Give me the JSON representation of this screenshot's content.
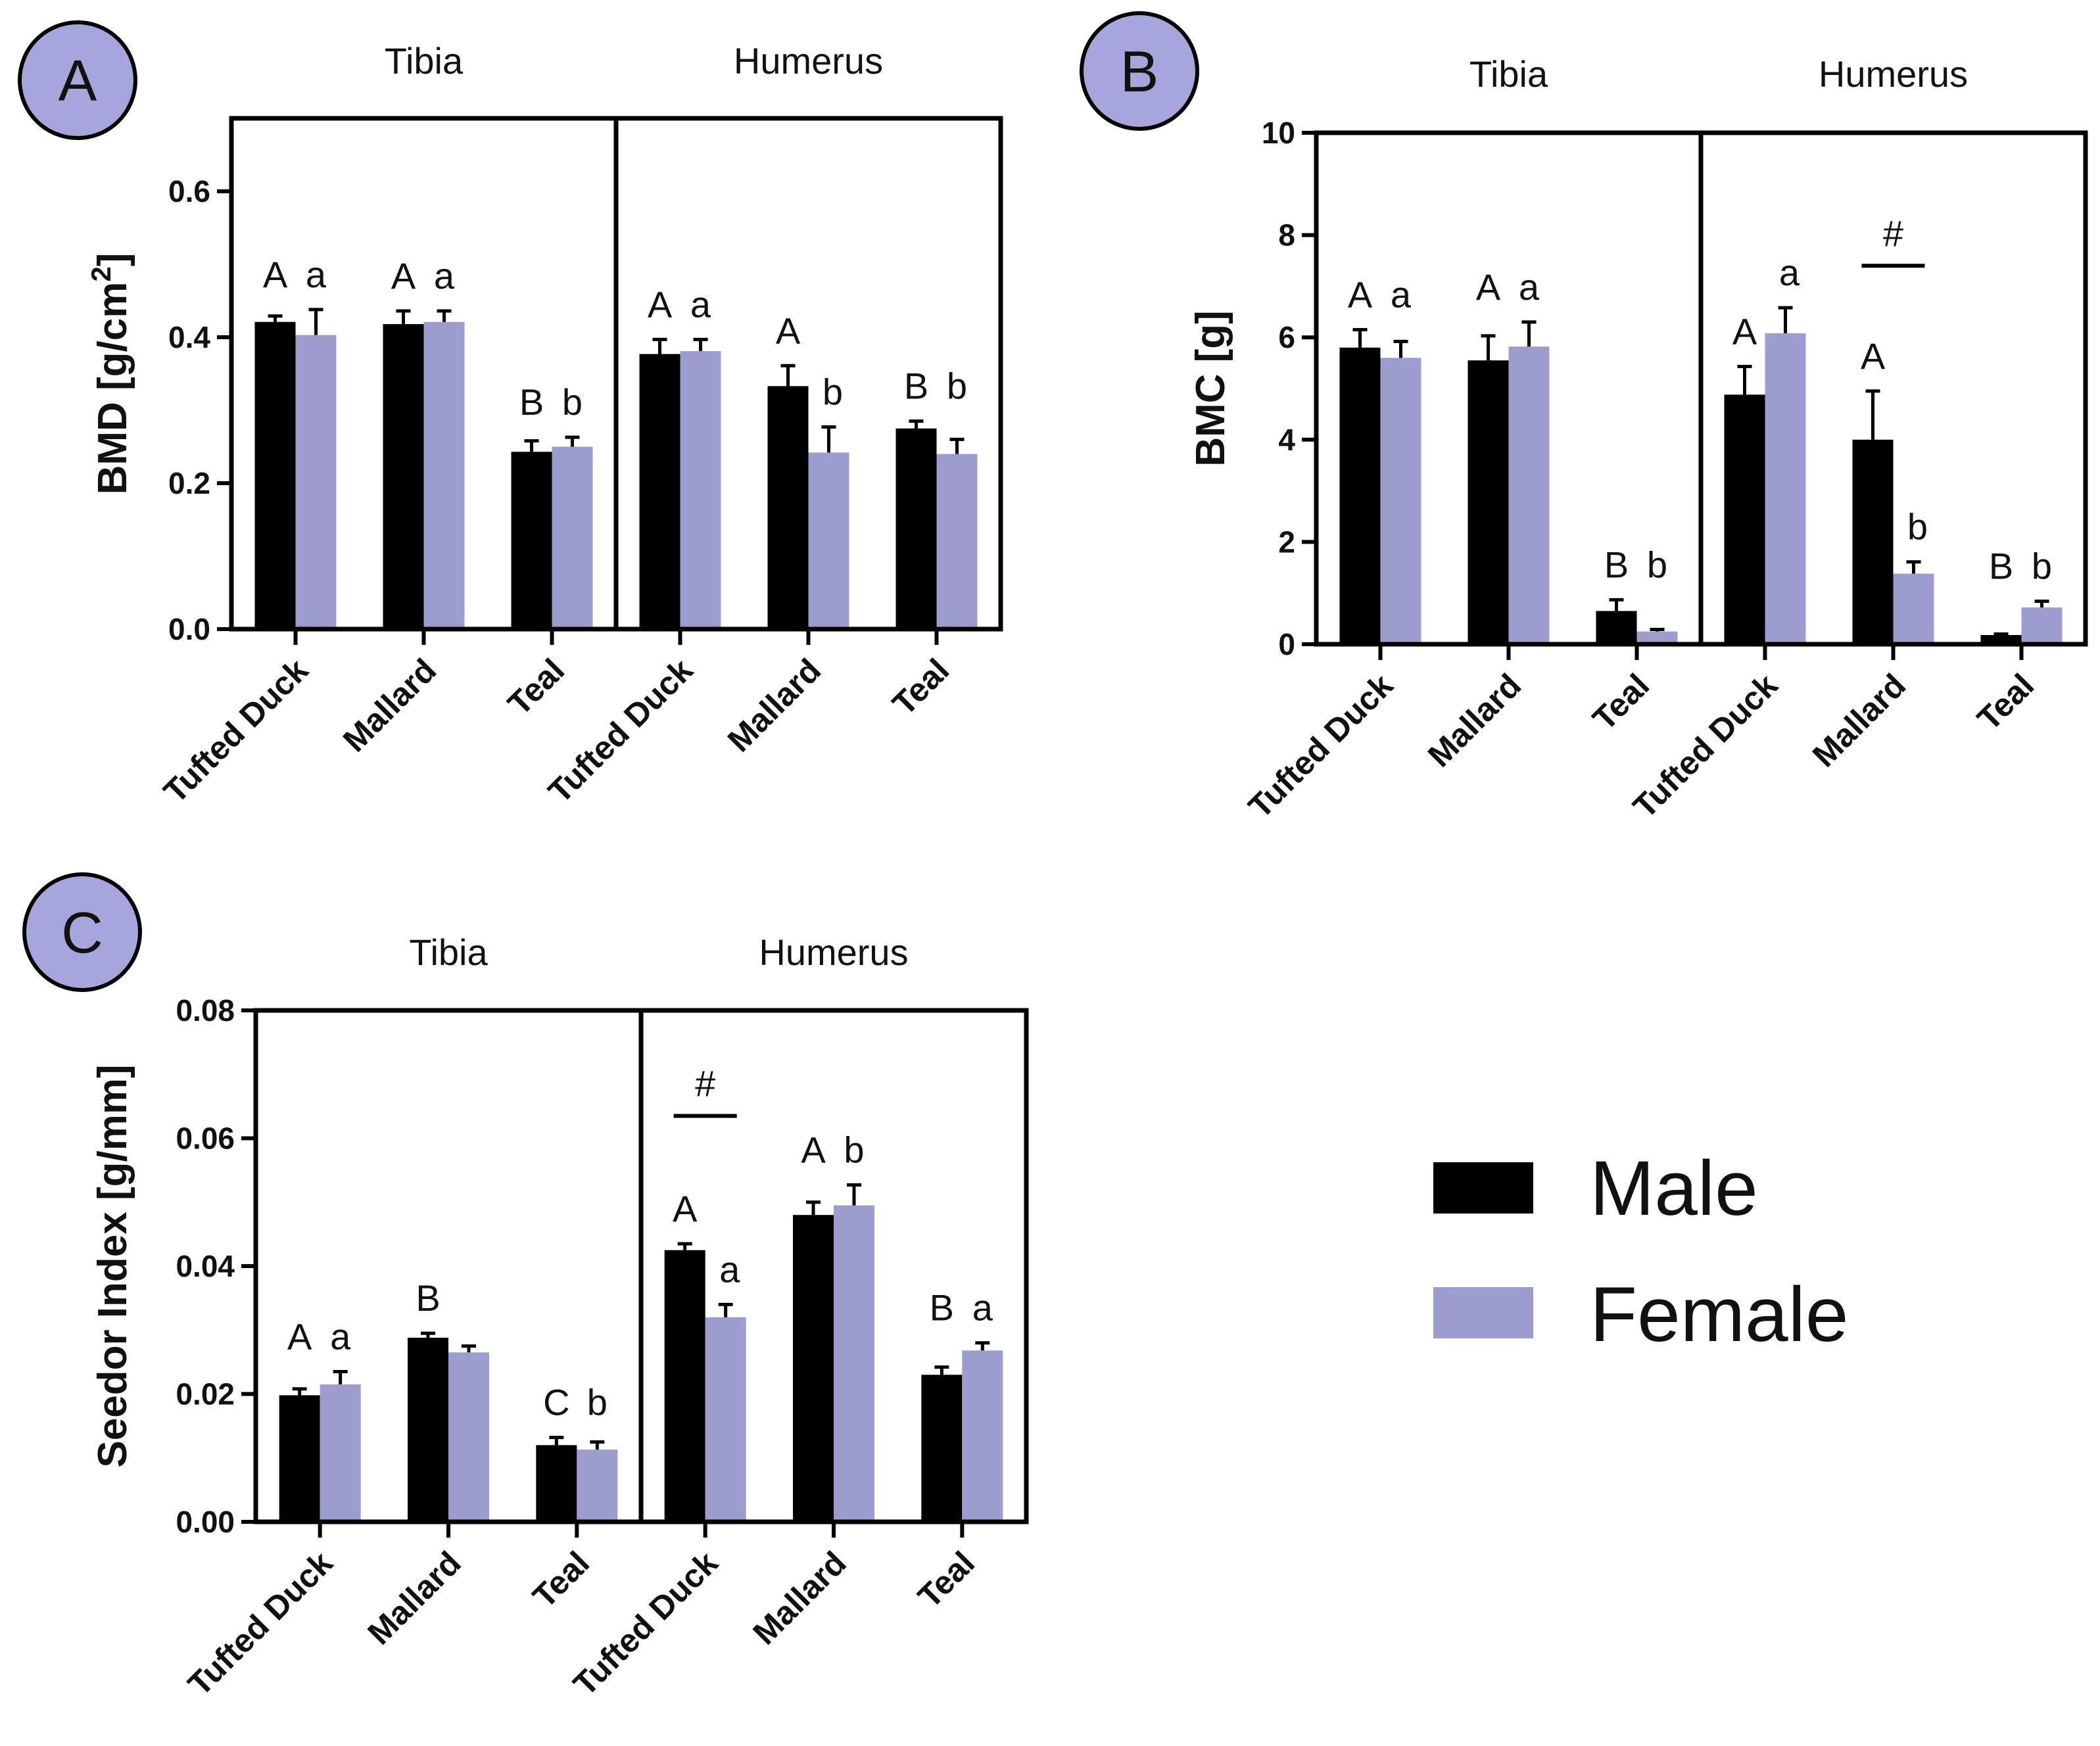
{
  "legend": {
    "items": [
      {
        "label": "Male",
        "color": "#000000"
      },
      {
        "label": "Female",
        "color": "#9c9ccf"
      }
    ]
  },
  "colors": {
    "male": "#000000",
    "female": "#9c9ccf",
    "badge": "#a6a6dc",
    "axis": "#000000"
  },
  "chart_data": [
    {
      "id": "A",
      "type": "bar",
      "panel_label": "A",
      "ylabel": "BMD [g/cm",
      "ylabel_sup": "2",
      "ylabel_end": "]",
      "ylim": [
        0,
        0.7
      ],
      "yticks": [
        0.0,
        0.2,
        0.4,
        0.6
      ],
      "ytick_labels": [
        "0.0",
        "0.2",
        "0.4",
        "0.6"
      ],
      "groups": [
        {
          "name": "Tibia",
          "categories": [
            {
              "name": "Tufted Duck",
              "male": 0.421,
              "male_err": 0.008,
              "female": 0.403,
              "female_err": 0.035,
              "sig_male": "A",
              "sig_female": "a"
            },
            {
              "name": "Mallard",
              "male": 0.418,
              "male_err": 0.018,
              "female": 0.421,
              "female_err": 0.015,
              "sig_male": "A",
              "sig_female": "a"
            },
            {
              "name": "Teal",
              "male": 0.243,
              "male_err": 0.015,
              "female": 0.25,
              "female_err": 0.013,
              "sig_male": "B",
              "sig_female": "b"
            }
          ]
        },
        {
          "name": "Humerus",
          "categories": [
            {
              "name": "Tufted Duck",
              "male": 0.377,
              "male_err": 0.02,
              "female": 0.381,
              "female_err": 0.016,
              "sig_male": "A",
              "sig_female": "a"
            },
            {
              "name": "Mallard",
              "male": 0.333,
              "male_err": 0.028,
              "female": 0.242,
              "female_err": 0.035,
              "sig_male": "A",
              "sig_female": "b"
            },
            {
              "name": "Teal",
              "male": 0.275,
              "male_err": 0.01,
              "female": 0.24,
              "female_err": 0.02,
              "sig_male": "B",
              "sig_female": "b"
            }
          ]
        }
      ],
      "annotations": []
    },
    {
      "id": "B",
      "type": "bar",
      "panel_label": "B",
      "ylabel": "BMC [g]",
      "ylabel_sup": "",
      "ylabel_end": "",
      "ylim": [
        0,
        10
      ],
      "yticks": [
        0,
        2,
        4,
        6,
        8,
        10
      ],
      "ytick_labels": [
        "0",
        "2",
        "4",
        "6",
        "8",
        "10"
      ],
      "groups": [
        {
          "name": "Tibia",
          "categories": [
            {
              "name": "Tufted Duck",
              "male": 5.8,
              "male_err": 0.35,
              "female": 5.6,
              "female_err": 0.32,
              "sig_male": "A",
              "sig_female": "a"
            },
            {
              "name": "Mallard",
              "male": 5.55,
              "male_err": 0.48,
              "female": 5.82,
              "female_err": 0.48,
              "sig_male": "A",
              "sig_female": "a"
            },
            {
              "name": "Teal",
              "male": 0.65,
              "male_err": 0.22,
              "female": 0.25,
              "female_err": 0.04,
              "sig_male": "B",
              "sig_female": "b"
            }
          ]
        },
        {
          "name": "Humerus",
          "categories": [
            {
              "name": "Tufted Duck",
              "male": 4.88,
              "male_err": 0.55,
              "female": 6.08,
              "female_err": 0.5,
              "sig_male": "A",
              "sig_female": "a"
            },
            {
              "name": "Mallard",
              "male": 4.0,
              "male_err": 0.95,
              "female": 1.38,
              "female_err": 0.23,
              "sig_male": "A",
              "sig_female": "b"
            },
            {
              "name": "Teal",
              "male": 0.18,
              "male_err": 0.02,
              "female": 0.72,
              "female_err": 0.12,
              "sig_male": "B",
              "sig_female": "b"
            }
          ]
        }
      ],
      "annotations": [
        {
          "group": 1,
          "category": 1,
          "text": "#",
          "y": 7.4
        }
      ]
    },
    {
      "id": "C",
      "type": "bar",
      "panel_label": "C",
      "ylabel": "Seedor Index [g/mm]",
      "ylabel_sup": "",
      "ylabel_end": "",
      "ylim": [
        0,
        0.08
      ],
      "yticks": [
        0.0,
        0.02,
        0.04,
        0.06,
        0.08
      ],
      "ytick_labels": [
        "0.00",
        "0.02",
        "0.04",
        "0.06",
        "0.08"
      ],
      "groups": [
        {
          "name": "Tibia",
          "categories": [
            {
              "name": "Tufted Duck",
              "male": 0.0198,
              "male_err": 0.001,
              "female": 0.0215,
              "female_err": 0.002,
              "sig_male": "A",
              "sig_female": "a"
            },
            {
              "name": "Mallard",
              "male": 0.0288,
              "male_err": 0.0007,
              "female": 0.0265,
              "female_err": 0.001,
              "sig_male": "B",
              "sig_female": ""
            },
            {
              "name": "Teal",
              "male": 0.012,
              "male_err": 0.0012,
              "female": 0.0113,
              "female_err": 0.0012,
              "sig_male": "C",
              "sig_female": "b"
            }
          ]
        },
        {
          "name": "Humerus",
          "categories": [
            {
              "name": "Tufted Duck",
              "male": 0.0425,
              "male_err": 0.001,
              "female": 0.032,
              "female_err": 0.002,
              "sig_male": "A",
              "sig_female": "a"
            },
            {
              "name": "Mallard",
              "male": 0.048,
              "male_err": 0.002,
              "female": 0.0495,
              "female_err": 0.0032,
              "sig_male": "A",
              "sig_female": "b"
            },
            {
              "name": "Teal",
              "male": 0.023,
              "male_err": 0.0012,
              "female": 0.0268,
              "female_err": 0.0012,
              "sig_male": "B",
              "sig_female": "a"
            }
          ]
        }
      ],
      "annotations": [
        {
          "group": 1,
          "category": 0,
          "text": "#",
          "y": 0.0635
        }
      ]
    }
  ]
}
